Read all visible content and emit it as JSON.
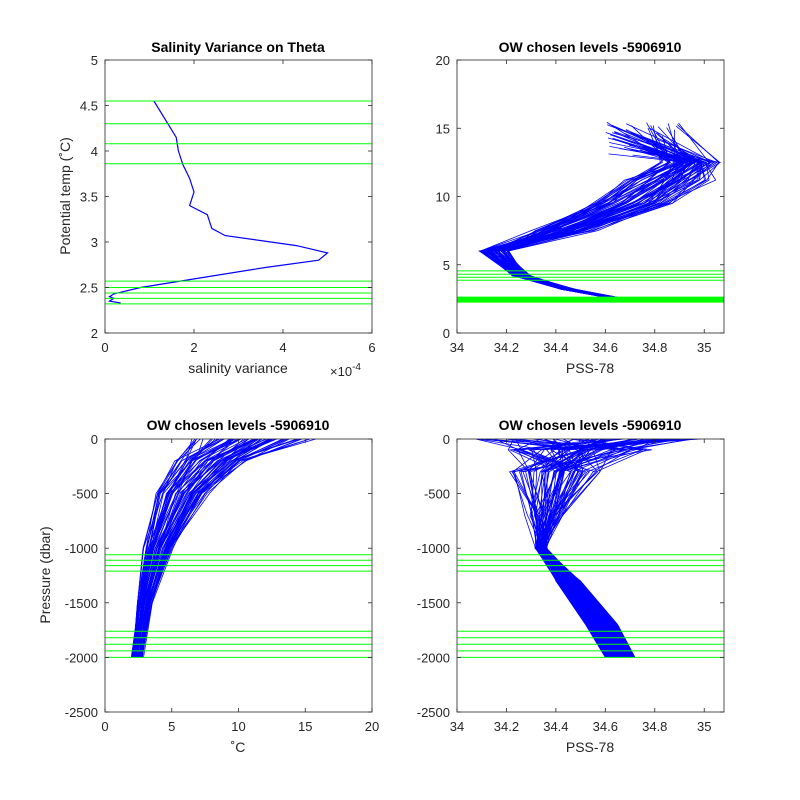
{
  "chart_data": [
    {
      "type": "line",
      "title": "Salinity Variance on Theta",
      "xlabel": "salinity variance",
      "ylabel": "Potential temp (˚C)",
      "x_exponent_label": "×10",
      "x_exponent_power": "-4",
      "xlim": [
        0,
        6
      ],
      "ylim": [
        2,
        5
      ],
      "xticks": [
        0,
        2,
        4,
        6
      ],
      "yticks": [
        2,
        2.5,
        3,
        3.5,
        4,
        4.5,
        5
      ],
      "ytick_labels": [
        "2",
        "2.5",
        "3",
        "3.5",
        "4",
        "4.5",
        "5"
      ],
      "series": [
        {
          "color": "#0000ff",
          "x": [
            1.1,
            1.6,
            1.65,
            1.75,
            1.9,
            2.0,
            1.9,
            2.3,
            2.4,
            2.7,
            4.3,
            5.0,
            4.8,
            3.6,
            0.8,
            0.2,
            0.1,
            0.2,
            0.1,
            0.35
          ],
          "y": [
            4.55,
            4.15,
            4.0,
            3.85,
            3.7,
            3.55,
            3.4,
            3.3,
            3.15,
            3.07,
            2.96,
            2.88,
            2.8,
            2.72,
            2.5,
            2.43,
            2.4,
            2.38,
            2.35,
            2.33
          ]
        }
      ],
      "hlines": {
        "color": "#00ff00",
        "y": [
          4.55,
          4.3,
          4.08,
          3.86,
          2.57,
          2.5,
          2.44,
          2.38,
          2.32
        ]
      }
    },
    {
      "type": "line",
      "title": "OW chosen levels -5906910",
      "xlabel": "PSS-78",
      "ylabel": "",
      "xlim": [
        34,
        35.08
      ],
      "ylim": [
        0,
        20
      ],
      "xticks": [
        34,
        34.2,
        34.4,
        34.6,
        34.8,
        35
      ],
      "xtick_labels": [
        "34",
        "34.2",
        "34.4",
        "34.6",
        "34.8",
        "35"
      ],
      "yticks": [
        0,
        5,
        10,
        15,
        20
      ],
      "hlines": {
        "color": "#00ff00",
        "y": [
          4.55,
          4.3,
          4.08,
          3.86,
          2.57,
          2.5,
          2.44,
          2.38,
          2.32
        ]
      }
    },
    {
      "type": "line",
      "title": "OW chosen levels -5906910",
      "xlabel": "˚C",
      "ylabel": "Pressure (dbar)",
      "xlim": [
        0,
        20
      ],
      "ylim": [
        -2500,
        0
      ],
      "xticks": [
        0,
        5,
        10,
        15,
        20
      ],
      "yticks": [
        -2500,
        -2000,
        -1500,
        -1000,
        -500,
        0
      ],
      "hlines": {
        "color": "#00ff00",
        "y": [
          -1060,
          -1110,
          -1160,
          -1210,
          -1760,
          -1820,
          -1880,
          -1940,
          -2000
        ]
      }
    },
    {
      "type": "line",
      "title": "OW chosen levels -5906910",
      "xlabel": "PSS-78",
      "ylabel": "",
      "xlim": [
        34,
        35.08
      ],
      "ylim": [
        -2500,
        0
      ],
      "xticks": [
        34,
        34.2,
        34.4,
        34.6,
        34.8,
        35
      ],
      "xtick_labels": [
        "34",
        "34.2",
        "34.4",
        "34.6",
        "34.8",
        "35"
      ],
      "yticks": [
        -2500,
        -2000,
        -1500,
        -1000,
        -500,
        0
      ],
      "hlines": {
        "color": "#00ff00",
        "y": [
          -1060,
          -1110,
          -1160,
          -1210,
          -1760,
          -1820,
          -1880,
          -1940,
          -2000
        ]
      }
    }
  ],
  "profile_color": "#0000ff",
  "level_color": "#00ff00"
}
